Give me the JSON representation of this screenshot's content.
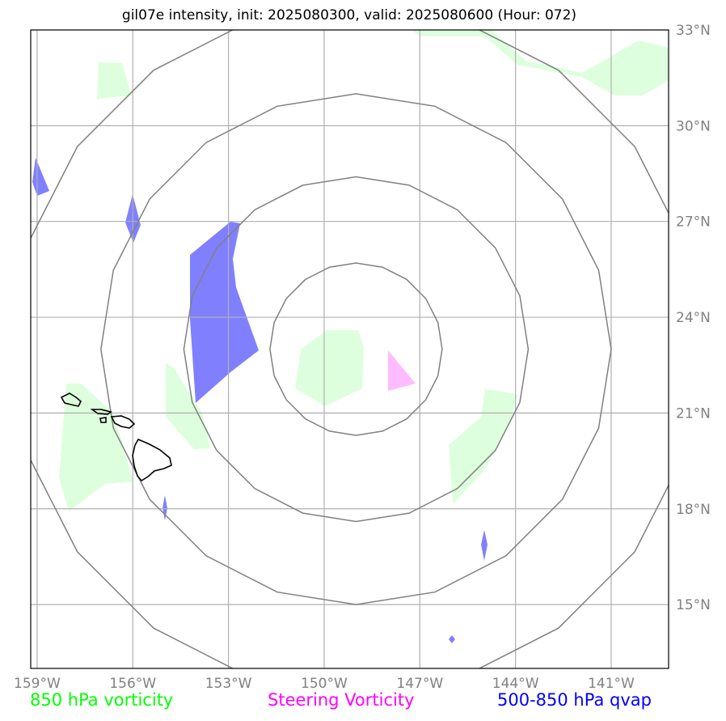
{
  "title": "gil07e intensity, init: 2025080300, valid: 2025080600 (Hour: 072)",
  "map": {
    "lon_range": [
      -159.2,
      -139.2
    ],
    "lat_range": [
      13.0,
      33.0
    ],
    "lon_ticks": [
      {
        "value": -159,
        "label": "159°W"
      },
      {
        "value": -156,
        "label": "156°W"
      },
      {
        "value": -153,
        "label": "153°W"
      },
      {
        "value": -150,
        "label": "150°W"
      },
      {
        "value": -147,
        "label": "147°W"
      },
      {
        "value": -144,
        "label": "144°W"
      },
      {
        "value": -141,
        "label": "141°W"
      }
    ],
    "lat_ticks": [
      {
        "value": 15,
        "label": "15°N"
      },
      {
        "value": 18,
        "label": "18°N"
      },
      {
        "value": 21,
        "label": "21°N"
      },
      {
        "value": 24,
        "label": "24°N"
      },
      {
        "value": 27,
        "label": "27°N"
      },
      {
        "value": 30,
        "label": "30°N"
      },
      {
        "value": 33,
        "label": "33°N"
      }
    ],
    "gridlines": true,
    "range_rings_center": {
      "lon": -149.0,
      "lat": 23.0
    },
    "range_ring_radii_deg": [
      2.7,
      5.4,
      8.0,
      10.8
    ],
    "colors": {
      "frame": "#000000",
      "grid": "#b0b0b0",
      "ring": "#808080",
      "vorticity_850": "#ddffdd",
      "steering_vorticity": "#ffbbff",
      "qvap_500_850": "#8080ff",
      "coast": "#000000"
    }
  },
  "legend": {
    "vorticity_850": "850 hPa vorticity",
    "steering": "Steering Vorticity",
    "qvap": "500-850 hPa qvap"
  }
}
